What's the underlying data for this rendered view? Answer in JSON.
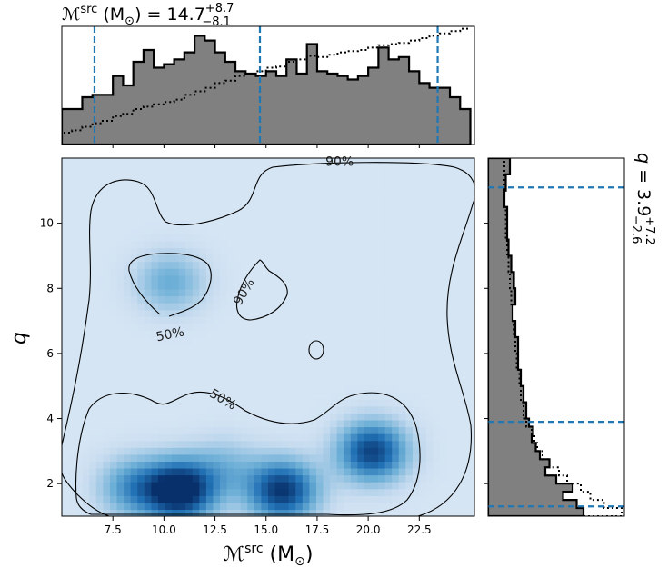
{
  "chart_data": [
    {
      "type": "heatmap",
      "name": "joint-density",
      "xlabel": "ℳsrc (M⊙)",
      "xlabel_main": "ℳ",
      "xlabel_sup": "src",
      "xlabel_unit": " (M",
      "xlabel_sub": "⊙",
      "xlabel_close": ")",
      "ylabel": "q",
      "xlim": [
        5.0,
        25.2
      ],
      "ylim": [
        1.0,
        12.0
      ],
      "xticks": [
        7.5,
        10.0,
        12.5,
        15.0,
        17.5,
        20.0,
        22.5
      ],
      "xtick_labels": [
        "7.5",
        "10.0",
        "12.5",
        "15.0",
        "17.5",
        "20.0",
        "22.5"
      ],
      "yticks": [
        2,
        4,
        6,
        8,
        10
      ],
      "ytick_labels": [
        "2",
        "4",
        "6",
        "8",
        "10"
      ],
      "colormap": [
        "#f7fbff",
        "#c6dbef",
        "#6baed6",
        "#2171b5",
        "#08306b"
      ],
      "density_peaks": [
        {
          "x": 10.8,
          "y": 1.8,
          "weight": 1.0
        },
        {
          "x": 15.8,
          "y": 1.8,
          "weight": 0.85
        },
        {
          "x": 20.2,
          "y": 3.0,
          "weight": 0.8
        },
        {
          "x": 8.5,
          "y": 1.9,
          "weight": 0.45
        },
        {
          "x": 10.3,
          "y": 8.2,
          "weight": 0.35
        },
        {
          "x": 13.0,
          "y": 2.5,
          "weight": 0.25
        }
      ],
      "contour_levels": [
        "50%",
        "90%"
      ],
      "contour_label_positions": [
        {
          "text": "90%",
          "x": 18.6,
          "y": 11.9
        },
        {
          "text": "90%",
          "x": 13.9,
          "y": 7.9
        },
        {
          "text": "50%",
          "x": 10.3,
          "y": 6.6
        },
        {
          "text": "50%",
          "x": 12.9,
          "y": 4.6
        }
      ]
    },
    {
      "type": "area",
      "name": "chirp-mass-marginal",
      "title_prefix": "ℳ",
      "title_sup": "src",
      "title_unit": " (M",
      "title_sub": "⊙",
      "title_mid": ") = 14.7",
      "title_sup2": "+8.7",
      "title_sub2": "−8.1",
      "median": 14.7,
      "lower": 6.6,
      "upper": 23.4,
      "xlim": [
        5.0,
        25.2
      ],
      "bins_x": [
        5.0,
        5.5,
        6.0,
        6.5,
        7.0,
        7.5,
        8.0,
        8.5,
        9.0,
        9.5,
        10.0,
        10.5,
        11.0,
        11.5,
        12.0,
        12.5,
        13.0,
        13.5,
        14.0,
        14.5,
        15.0,
        15.5,
        16.0,
        16.5,
        17.0,
        17.5,
        18.0,
        18.5,
        19.0,
        19.5,
        20.0,
        20.5,
        21.0,
        21.5,
        22.0,
        22.5,
        23.0,
        23.5,
        24.0,
        24.5,
        25.0
      ],
      "posterior": [
        0.3,
        0.3,
        0.4,
        0.42,
        0.42,
        0.58,
        0.5,
        0.7,
        0.8,
        0.65,
        0.68,
        0.72,
        0.78,
        0.92,
        0.88,
        0.78,
        0.7,
        0.62,
        0.6,
        0.58,
        0.62,
        0.58,
        0.72,
        0.6,
        0.85,
        0.62,
        0.6,
        0.58,
        0.55,
        0.58,
        0.65,
        0.82,
        0.72,
        0.74,
        0.62,
        0.52,
        0.48,
        0.48,
        0.4,
        0.3
      ],
      "prior": [
        0.1,
        0.12,
        0.15,
        0.18,
        0.2,
        0.24,
        0.26,
        0.3,
        0.32,
        0.34,
        0.36,
        0.38,
        0.42,
        0.45,
        0.48,
        0.52,
        0.54,
        0.58,
        0.6,
        0.62,
        0.65,
        0.66,
        0.7,
        0.72,
        0.75,
        0.74,
        0.76,
        0.78,
        0.79,
        0.8,
        0.82,
        0.84,
        0.85,
        0.86,
        0.88,
        0.9,
        0.92,
        0.94,
        0.96,
        0.98
      ]
    },
    {
      "type": "area",
      "name": "mass-ratio-marginal",
      "title_prefix": "q",
      "title_mid": " = 3.9",
      "title_sup2": "+7.2",
      "title_sub2": "−2.6",
      "median": 3.9,
      "lower": 1.3,
      "upper": 11.1,
      "ylim": [
        1.0,
        12.0
      ],
      "bins_y": [
        1.0,
        1.25,
        1.5,
        1.75,
        2.0,
        2.25,
        2.5,
        2.75,
        3.0,
        3.25,
        3.5,
        3.75,
        4.0,
        4.5,
        5.0,
        5.5,
        6.0,
        6.5,
        7.0,
        7.5,
        8.0,
        8.5,
        9.0,
        9.5,
        10.0,
        10.5,
        11.0,
        11.5
      ],
      "posterior": [
        0.7,
        0.65,
        0.55,
        0.62,
        0.5,
        0.42,
        0.45,
        0.38,
        0.35,
        0.32,
        0.33,
        0.3,
        0.28,
        0.26,
        0.24,
        0.22,
        0.22,
        0.2,
        0.18,
        0.2,
        0.19,
        0.17,
        0.15,
        0.14,
        0.14,
        0.12,
        0.13,
        0.16
      ],
      "prior": [
        0.98,
        0.85,
        0.75,
        0.68,
        0.58,
        0.52,
        0.45,
        0.4,
        0.36,
        0.34,
        0.32,
        0.28,
        0.26,
        0.24,
        0.23,
        0.21,
        0.2,
        0.19,
        0.18,
        0.17,
        0.16,
        0.15,
        0.14,
        0.13,
        0.13,
        0.12,
        0.12,
        0.12
      ]
    }
  ]
}
